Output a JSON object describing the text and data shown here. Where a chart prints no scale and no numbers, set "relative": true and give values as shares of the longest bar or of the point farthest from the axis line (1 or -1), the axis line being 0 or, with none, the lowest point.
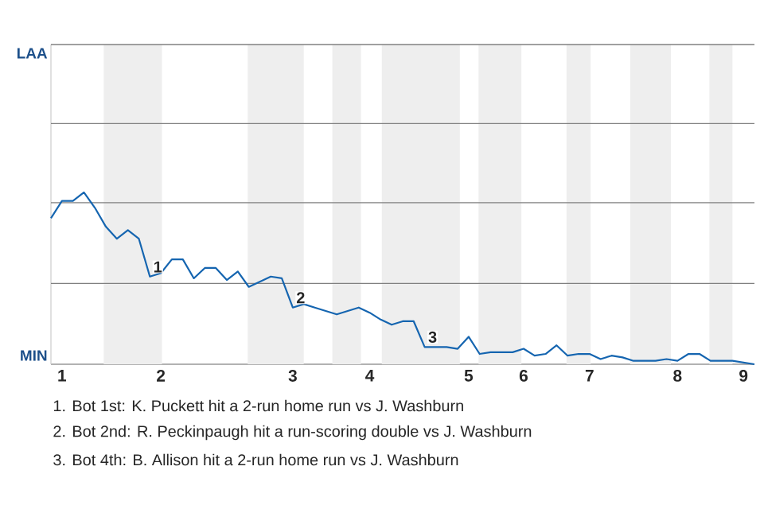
{
  "chart_data": {
    "type": "line",
    "relative": true,
    "categories": [
      null,
      "1",
      null,
      null,
      null,
      null,
      null,
      null,
      null,
      null,
      "2",
      null,
      null,
      null,
      null,
      null,
      null,
      null,
      null,
      null,
      null,
      null,
      "3",
      null,
      null,
      null,
      null,
      null,
      null,
      "4",
      null,
      null,
      null,
      null,
      null,
      null,
      null,
      null,
      "5",
      null,
      null,
      null,
      null,
      "6",
      null,
      null,
      null,
      null,
      null,
      "7",
      null,
      null,
      null,
      null,
      null,
      null,
      null,
      "8",
      null,
      null,
      null,
      null,
      null,
      "9",
      null
    ],
    "series": [
      {
        "color": "#1565b0",
        "values": [
          0.85,
          0.95,
          0.95,
          1,
          0.91,
          0.8,
          0.73,
          0.78,
          0.73,
          0.51,
          0.53,
          0.61,
          0.61,
          0.5,
          0.56,
          0.56,
          0.49,
          0.54,
          0.45,
          0.48,
          0.51,
          0.5,
          0.33,
          0.35,
          0.33,
          0.31,
          0.29,
          0.31,
          0.33,
          0.3,
          0.26,
          0.23,
          0.25,
          0.25,
          0.1,
          0.1,
          0.1,
          0.09,
          0.16,
          0.06,
          0.07,
          0.07,
          0.07,
          0.09,
          0.05,
          0.06,
          0.11,
          0.05,
          0.06,
          0.06,
          0.03,
          0.05,
          0.04,
          0.02,
          0.02,
          0.02,
          0.03,
          0.02,
          0.06,
          0.06,
          0.02,
          0.02,
          0.02,
          0.01,
          0
        ]
      }
    ],
    "ref_lines": [
      {
        "axis": "y",
        "value": 0.47,
        "color": "#808080"
      },
      {
        "axis": "y",
        "value": 0.94,
        "color": "#808080"
      },
      {
        "axis": "y",
        "value": 1.4,
        "color": "#808080"
      },
      {
        "axis": "y",
        "value": 1.86,
        "color": "#808080"
      }
    ],
    "annotations": [
      {
        "text": "1",
        "y": 0.51
      },
      {
        "text": "2",
        "y": 0.33
      },
      {
        "text": "3",
        "y": 0.1
      },
      "LAA",
      "MIN",
      "1. Bot 1st: K. Puckett hit a 2-run home run vs J. Washburn",
      "2. Bot 2nd: R. Peckinpaugh hit a run-scoring double vs J. Washburn",
      "3. Bot 4th: B. Allison hit a 2-run home run vs J. Washburn"
    ]
  }
}
